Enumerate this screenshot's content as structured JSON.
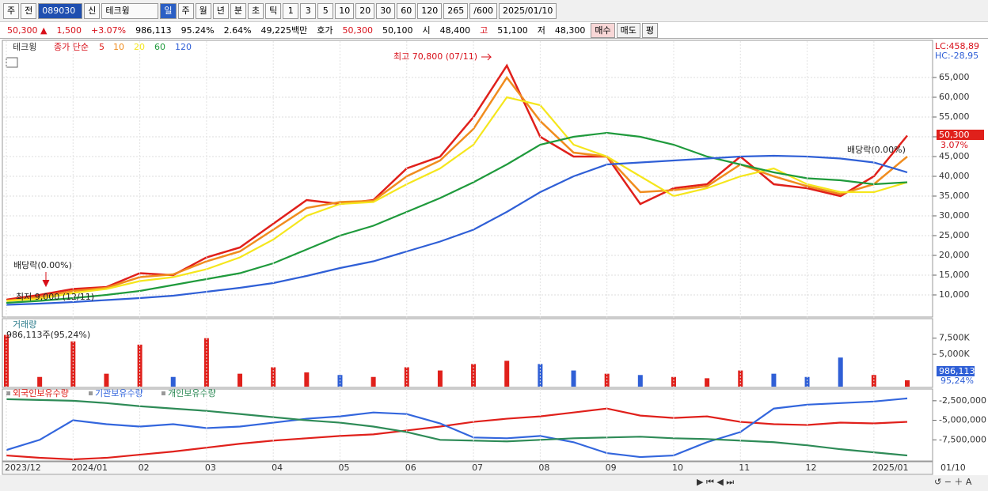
{
  "toolbar": {
    "items": [
      "주",
      "전",
      "089030",
      "신",
      "테크윙",
      "일",
      "주",
      "월",
      "년",
      "분",
      "초",
      "틱",
      "1",
      "3",
      "5",
      "10",
      "20",
      "30",
      "60",
      "120",
      "265",
      "/600",
      "2025/01/10"
    ]
  },
  "quote": {
    "items": [
      "50,300 ▲",
      "1,500",
      "+3.07%",
      "986,113",
      "95.24%",
      "2.64%",
      "49,225백만",
      "호가",
      "50,300",
      "50,100",
      "시",
      "48,400",
      "고",
      "51,100",
      "저",
      "48,300"
    ],
    "buttons": [
      "매수",
      "매도",
      "평"
    ]
  },
  "chart_data": [
    {
      "type": "line",
      "title": "테크윙",
      "subtitle": "종가 단순",
      "ylim": [
        4600,
        74200
      ],
      "yticks": [
        {
          "value": 10000,
          "label": "10,000"
        },
        {
          "value": 15000,
          "label": "15,000"
        },
        {
          "value": 20000,
          "label": "20,000"
        },
        {
          "value": 25000,
          "label": "25,000"
        },
        {
          "value": 30000,
          "label": "30,000"
        },
        {
          "value": 35000,
          "label": "35,000"
        },
        {
          "value": 40000,
          "label": "40,000"
        },
        {
          "value": 45000,
          "label": "45,000"
        },
        {
          "value": 50000,
          "label": "50,000"
        },
        {
          "value": 55000,
          "label": "55,000"
        },
        {
          "value": 60000,
          "label": "60,000"
        },
        {
          "value": 65000,
          "label": "65,000"
        }
      ],
      "grid": true,
      "series": [
        {
          "name": "5",
          "color": "#e0201b",
          "values": [
            8800,
            10000,
            11500,
            12000,
            15500,
            15000,
            19500,
            22000,
            28000,
            34000,
            33000,
            34000,
            42000,
            45000,
            55000,
            68000,
            50000,
            45000,
            45000,
            33000,
            37000,
            38000,
            45000,
            38000,
            37000,
            35000,
            40000,
            50300
          ]
        },
        {
          "name": "10",
          "color": "#f08c1e",
          "values": [
            8500,
            9500,
            11000,
            11800,
            14500,
            15200,
            18500,
            21000,
            26500,
            32000,
            33500,
            33800,
            40000,
            44000,
            52000,
            65000,
            54000,
            46000,
            45000,
            36000,
            36500,
            37500,
            43000,
            40000,
            37500,
            35500,
            38000,
            45000
          ]
        },
        {
          "name": "20",
          "color": "#f5e61c",
          "values": [
            8500,
            9000,
            10500,
            11500,
            13500,
            14500,
            16500,
            19500,
            24000,
            30000,
            33000,
            33500,
            38000,
            42000,
            48000,
            60000,
            58000,
            48000,
            45000,
            40000,
            35000,
            37000,
            40000,
            42000,
            38000,
            36000,
            36000,
            38500
          ]
        },
        {
          "name": "60",
          "color": "#1f9a3c",
          "values": [
            8000,
            8500,
            9200,
            10000,
            11000,
            12500,
            14000,
            15500,
            18000,
            21500,
            25000,
            27500,
            31000,
            34500,
            38500,
            43000,
            48000,
            50000,
            51000,
            50000,
            48000,
            45000,
            43000,
            41000,
            39500,
            39000,
            38000,
            38500
          ]
        },
        {
          "name": "120",
          "color": "#2f5fd6",
          "values": [
            7500,
            7800,
            8200,
            8700,
            9200,
            9800,
            10800,
            11800,
            13000,
            14800,
            16800,
            18500,
            21000,
            23500,
            26500,
            31000,
            36000,
            40000,
            43000,
            43500,
            44000,
            44500,
            45000,
            45200,
            45000,
            44500,
            43500,
            41000
          ]
        }
      ],
      "annotations": [
        "최고 70,800 (07/11)",
        "최저 9,000 (12/11)",
        "배당락(0.00%)",
        "배당락(0.00%)"
      ],
      "lc": "LC:458,89",
      "hc": "HC:-28,95",
      "last_label": "50,300",
      "last_change": "3.07%"
    },
    {
      "type": "bar",
      "title": "거래량",
      "subtitle": "986,113주(95,24%)",
      "ylim": [
        0,
        10400000
      ],
      "yticks": [
        {
          "value": 5000000,
          "label": "5,000K"
        },
        {
          "value": 7500000,
          "label": "7,500K"
        }
      ],
      "values": [
        8000000,
        1500000,
        7000000,
        2000000,
        6500000,
        1500000,
        7500000,
        2000000,
        3000000,
        2200000,
        1800000,
        1500000,
        3000000,
        2500000,
        3500000,
        4000000,
        3500000,
        2500000,
        2000000,
        1800000,
        1500000,
        1300000,
        2500000,
        2000000,
        1500000,
        4500000,
        1800000,
        986113
      ],
      "last_label": "986,113",
      "last_change": "95,24%"
    },
    {
      "type": "line",
      "ylim": [
        -10100000,
        -1100000
      ],
      "yticks": [
        {
          "value": -2500000,
          "label": "-2,500,000"
        },
        {
          "value": -5000000,
          "label": "-5,000,000"
        },
        {
          "value": -7500000,
          "label": "-7,500,000"
        }
      ],
      "categories": [
        "2023/12",
        null,
        "2024/01",
        null,
        "02",
        null,
        "03",
        null,
        "04",
        null,
        "05",
        null,
        "06",
        null,
        "07",
        null,
        "08",
        null,
        "09",
        null,
        "10",
        null,
        "11",
        null,
        "12",
        null,
        "2025/01",
        null
      ],
      "end_label": "01/10",
      "series": [
        {
          "name": "외국인보유수량",
          "color": "#e0201b",
          "values": [
            -9500000,
            -9800000,
            -10000000,
            -9800000,
            -9400000,
            -9000000,
            -8500000,
            -8000000,
            -7600000,
            -7300000,
            -7000000,
            -6800000,
            -6300000,
            -5800000,
            -5200000,
            -4800000,
            -4500000,
            -4000000,
            -3500000,
            -4400000,
            -4700000,
            -4500000,
            -5200000,
            -5500000,
            -5600000,
            -5300000,
            -5400000,
            -5200000
          ]
        },
        {
          "name": "기관보유수량",
          "color": "#3366dd",
          "values": [
            -8800000,
            -7500000,
            -5000000,
            -5500000,
            -5800000,
            -5500000,
            -6000000,
            -5800000,
            -5300000,
            -4800000,
            -4500000,
            -4000000,
            -4200000,
            -5400000,
            -7200000,
            -7300000,
            -7000000,
            -7800000,
            -9200000,
            -9700000,
            -9500000,
            -7800000,
            -6500000,
            -3500000,
            -3000000,
            -2800000,
            -2600000,
            -2200000
          ]
        },
        {
          "name": "개인보유수량",
          "color": "#2e8b57",
          "values": [
            -2300000,
            -2400000,
            -2500000,
            -2800000,
            -3200000,
            -3500000,
            -3800000,
            -4200000,
            -4600000,
            -5000000,
            -5300000,
            -5800000,
            -6500000,
            -7500000,
            -7600000,
            -7700000,
            -7500000,
            -7300000,
            -7200000,
            -7100000,
            -7300000,
            -7400000,
            -7600000,
            -7800000,
            -8200000,
            -8700000,
            -9100000,
            -9500000
          ]
        }
      ]
    }
  ]
}
